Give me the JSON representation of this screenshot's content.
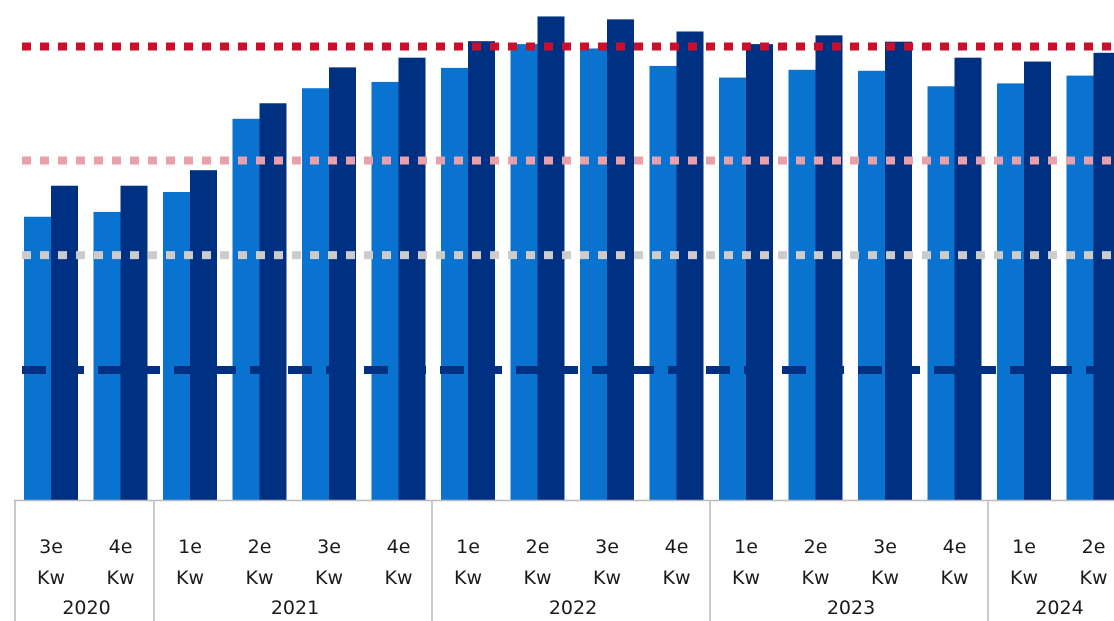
{
  "chart_data": {
    "type": "bar",
    "title": "",
    "xlabel": "",
    "ylabel": "",
    "ylim": [
      0,
      100
    ],
    "grid": false,
    "legend": "none",
    "categories": [
      {
        "quarter": "3e",
        "unit": "Kw"
      },
      {
        "quarter": "4e",
        "unit": "Kw"
      },
      {
        "quarter": "1e",
        "unit": "Kw"
      },
      {
        "quarter": "2e",
        "unit": "Kw"
      },
      {
        "quarter": "3e",
        "unit": "Kw"
      },
      {
        "quarter": "4e",
        "unit": "Kw"
      },
      {
        "quarter": "1e",
        "unit": "Kw"
      },
      {
        "quarter": "2e",
        "unit": "Kw"
      },
      {
        "quarter": "3e",
        "unit": "Kw"
      },
      {
        "quarter": "4e",
        "unit": "Kw"
      },
      {
        "quarter": "1e",
        "unit": "Kw"
      },
      {
        "quarter": "2e",
        "unit": "Kw"
      },
      {
        "quarter": "3e",
        "unit": "Kw"
      },
      {
        "quarter": "4e",
        "unit": "Kw"
      },
      {
        "quarter": "1e",
        "unit": "Kw"
      },
      {
        "quarter": "2e",
        "unit": "Kw"
      }
    ],
    "year_groups": [
      {
        "label": "2020",
        "count": 2
      },
      {
        "label": "2021",
        "count": 4
      },
      {
        "label": "2022",
        "count": 4
      },
      {
        "label": "2023",
        "count": 4
      },
      {
        "label": "2024",
        "count": 2
      }
    ],
    "series": [
      {
        "color": "#0a72cf",
        "values": [
          58.4,
          59.4,
          63.5,
          78.6,
          84.9,
          86.2,
          89.1,
          94.0,
          93.1,
          89.5,
          87.1,
          88.7,
          88.5,
          85.3,
          85.9,
          87.5
        ]
      },
      {
        "color": "#003082",
        "values": [
          64.8,
          64.8,
          68.0,
          81.8,
          89.2,
          91.2,
          94.6,
          99.7,
          99.1,
          96.6,
          94.0,
          95.8,
          94.5,
          91.2,
          90.4,
          92.2
        ]
      }
    ],
    "reference_lines": [
      {
        "value": 93.5,
        "color": "#c8102e",
        "style": "dotted"
      },
      {
        "value": 70.0,
        "color": "#e8a0aa",
        "style": "dotted"
      },
      {
        "value": 50.5,
        "color": "#cccccc",
        "style": "dotted"
      },
      {
        "value": 26.8,
        "color": "#003082",
        "style": "dashed"
      }
    ],
    "axis_color": "#bbbbbb"
  }
}
